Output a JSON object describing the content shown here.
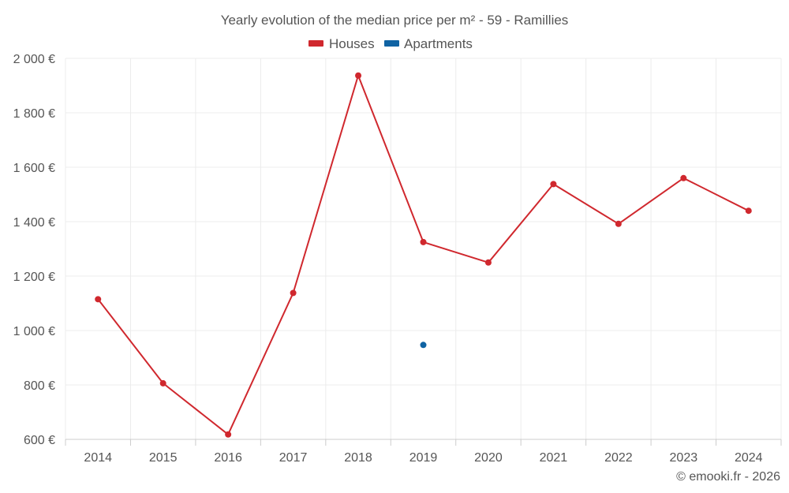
{
  "chart_data": {
    "type": "line",
    "title": "Yearly evolution of the median price per m² - 59 - Ramillies",
    "categories": [
      "2014",
      "2015",
      "2016",
      "2017",
      "2018",
      "2019",
      "2020",
      "2021",
      "2022",
      "2023",
      "2024"
    ],
    "ylim": [
      600,
      2000
    ],
    "yticks": [
      600,
      800,
      1000,
      1200,
      1400,
      1600,
      1800,
      2000
    ],
    "ytick_labels": [
      "600 €",
      "800 €",
      "1 000 €",
      "1 200 €",
      "1 400 €",
      "1 600 €",
      "1 800 €",
      "2 000 €"
    ],
    "grid": true,
    "legend_position": "top-center",
    "series": [
      {
        "name": "Houses",
        "color": "#d0282e",
        "values": [
          1115,
          806,
          618,
          1138,
          1937,
          1325,
          1250,
          1538,
          1392,
          1560,
          1440
        ]
      },
      {
        "name": "Apartments",
        "color": "#0f63a3",
        "values": [
          null,
          null,
          null,
          null,
          null,
          947,
          null,
          null,
          null,
          null,
          null
        ]
      }
    ],
    "credit": "© emooki.fr - 2026"
  }
}
